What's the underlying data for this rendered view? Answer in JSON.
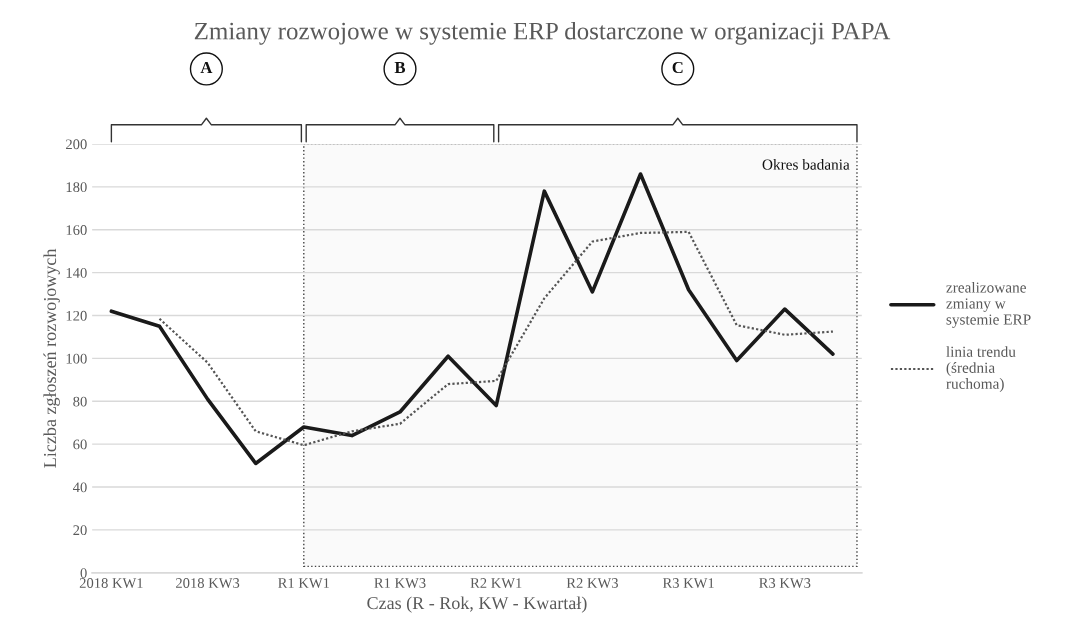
{
  "chart_data": {
    "type": "line",
    "title": "Zmiany rozwojowe w systemie ERP dostarczone w organizacji PAPA",
    "xlabel": "Czas (R - Rok, KW - Kwartał)",
    "ylabel": "Liczba zgłoszeń rozwojowych",
    "categories": [
      "2018 KW1",
      null,
      "2018 KW3",
      null,
      "R1 KW1",
      null,
      "R1 KW3",
      null,
      "R2 KW1",
      null,
      "R2 KW3",
      null,
      "R3 KW1",
      null,
      "R3 KW3",
      null
    ],
    "series": [
      {
        "name": "zrealizowane zmiany w systemie ERP",
        "color": "#1a1a1a",
        "line_style": "solid",
        "values": [
          122,
          115,
          81,
          51,
          68,
          64,
          75,
          101,
          78,
          178,
          131,
          186,
          132,
          99,
          123,
          102
        ]
      },
      {
        "name": "linia trendu (średnia ruchoma)",
        "color": "#555555",
        "line_style": "dotted",
        "values": [
          null,
          118.5,
          98,
          66,
          59.5,
          66,
          69.5,
          88,
          89.5,
          128,
          154.5,
          158.5,
          159,
          115.5,
          111,
          112.5
        ]
      }
    ],
    "ylim": [
      0,
      200
    ],
    "yticks": [
      0,
      20,
      40,
      60,
      80,
      100,
      120,
      140,
      160,
      180,
      200
    ],
    "grid": "y",
    "legend": "right",
    "marker": "none",
    "annotations": [
      "A",
      "B",
      "C",
      "Okres badania"
    ]
  }
}
